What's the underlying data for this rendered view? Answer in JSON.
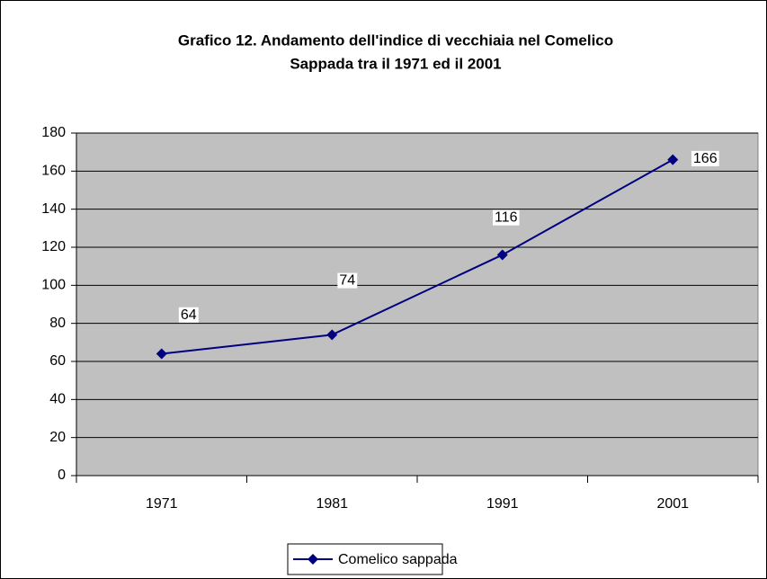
{
  "chart_data": {
    "type": "line",
    "title": [
      "Grafico 12. Andamento dell'indice di vecchiaia nel Comelico",
      "Sappada tra il 1971 ed il 2001"
    ],
    "categories": [
      "1971",
      "1981",
      "1991",
      "2001"
    ],
    "series": [
      {
        "name": "Comelico sappada",
        "color": "#000080",
        "values": [
          64,
          74,
          116,
          166
        ]
      }
    ],
    "ylim": [
      0,
      180
    ],
    "yticks": [
      0,
      20,
      40,
      60,
      80,
      100,
      120,
      140,
      160,
      180
    ],
    "grid": true,
    "legend": "bottom",
    "plot_color": "#c0c0c0"
  }
}
